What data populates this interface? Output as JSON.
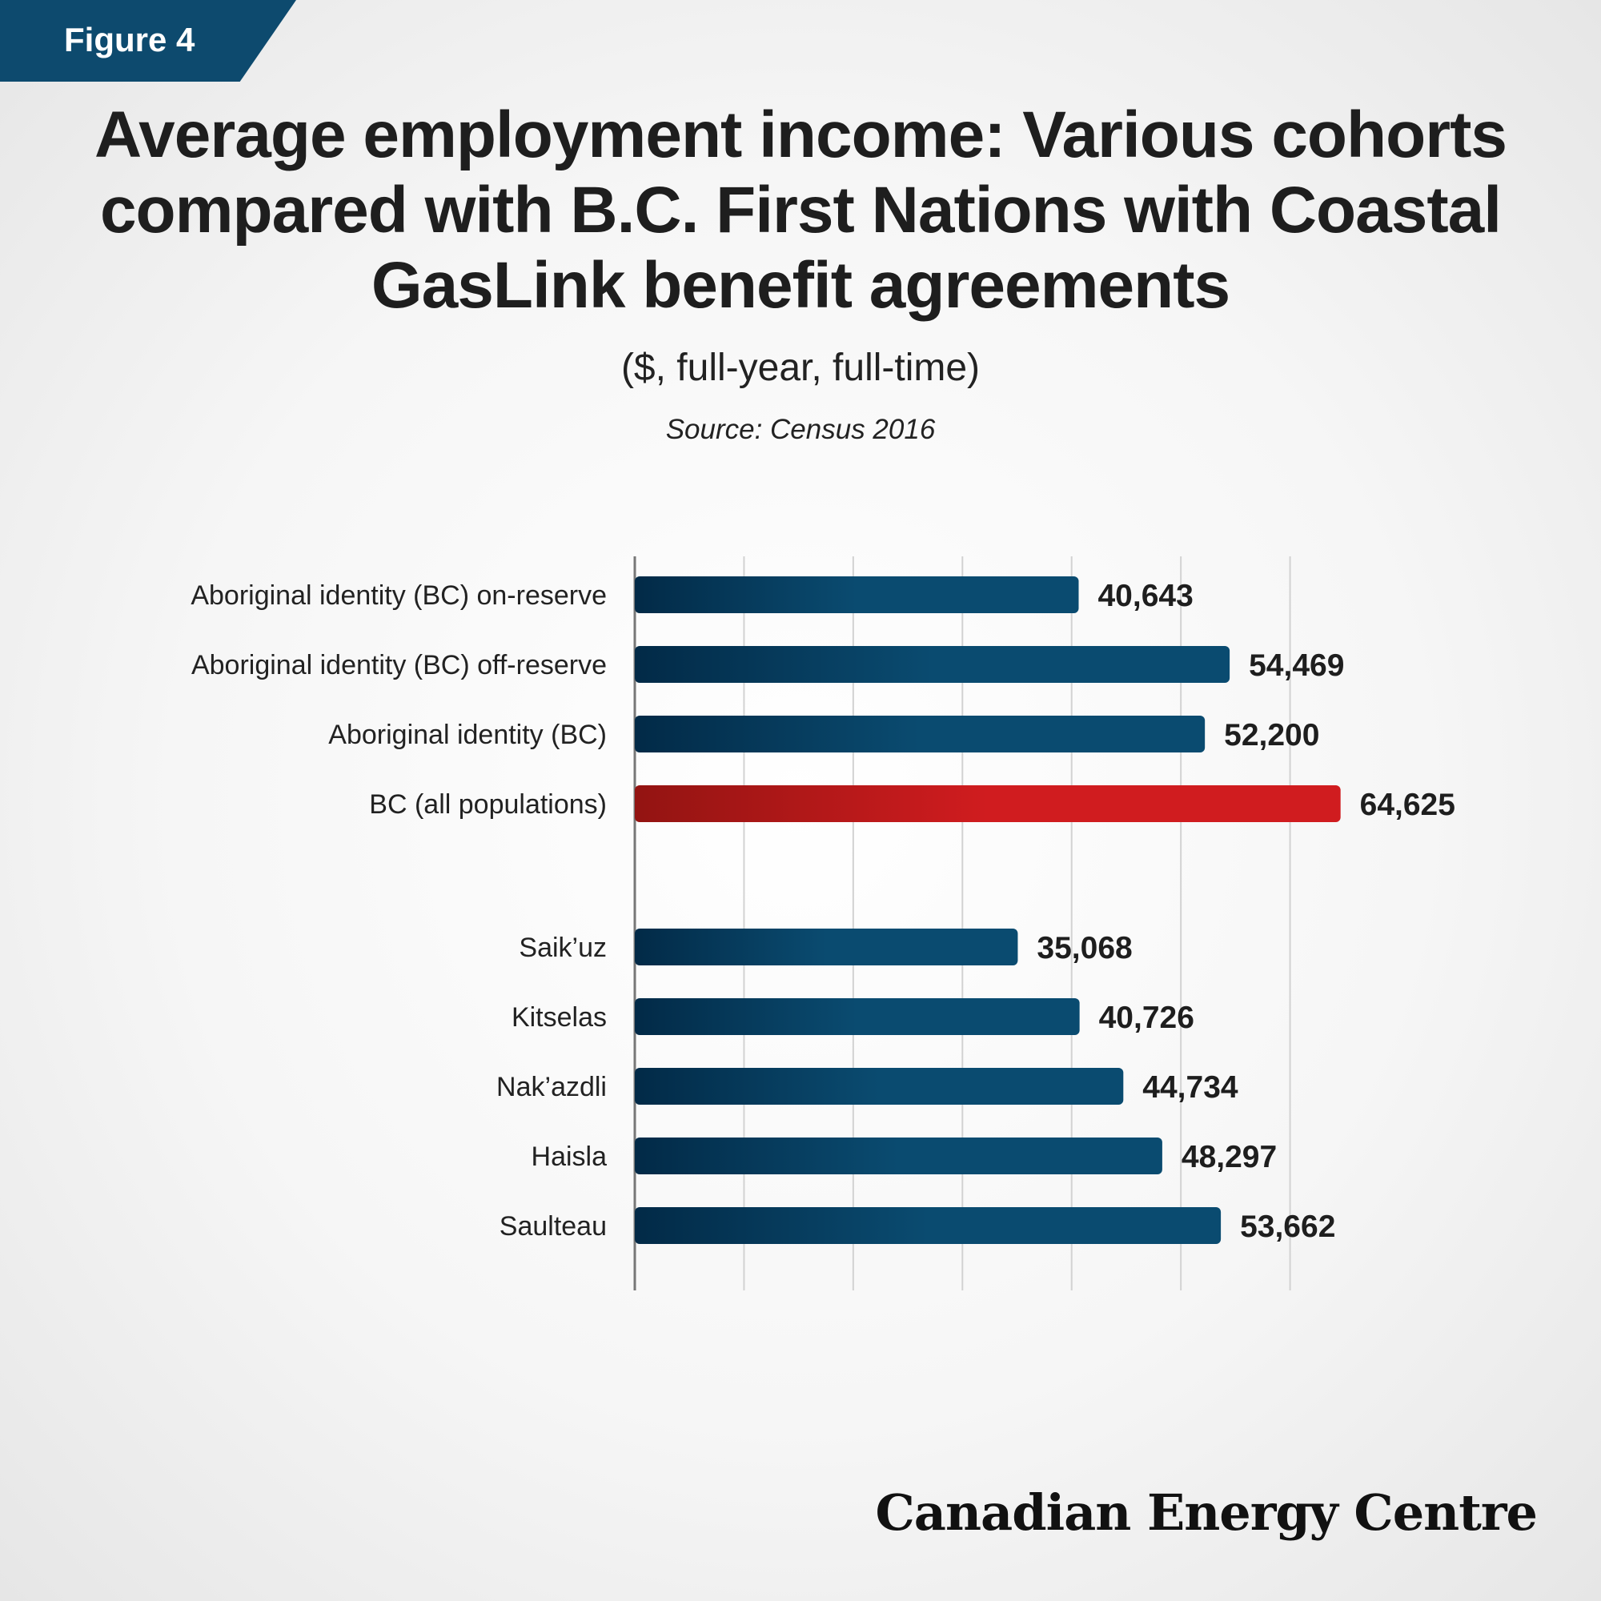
{
  "figure_label": "Figure 4",
  "brand": "Canadian Energy Centre",
  "colors": {
    "bar_dark": "#022a47",
    "bar_light": "#0a4b70",
    "highlight_dark": "#931412",
    "highlight_light": "#d01c1f",
    "grid": "#d2d2d2",
    "axis": "#777777",
    "label": "#222222"
  },
  "chart_data": {
    "type": "bar",
    "orientation": "horizontal",
    "title": "Average employment income: Various cohorts compared with B.C. First Nations with Coastal GasLink benefit agreements",
    "subtitle": "($, full-year, full-time)",
    "source": "Source: Census 2016",
    "xlim": [
      0,
      70000
    ],
    "grid": true,
    "groups": [
      {
        "categories": [
          "Aboriginal identity (BC) on-reserve",
          "Aboriginal identity (BC) off-reserve",
          "Aboriginal identity (BC)",
          "BC (all populations)"
        ],
        "values": [
          40643,
          54469,
          52200,
          64625
        ],
        "labels": [
          "40,643",
          "54,469",
          "52,200",
          "64,625"
        ],
        "highlight": [
          false,
          false,
          false,
          true
        ]
      },
      {
        "categories": [
          "Saik’uz",
          "Kitselas",
          "Nak’azdli",
          "Haisla",
          "Saulteau"
        ],
        "values": [
          35068,
          40726,
          44734,
          48297,
          53662
        ],
        "labels": [
          "35,068",
          "40,726",
          "44,734",
          "48,297",
          "53,662"
        ],
        "highlight": [
          false,
          false,
          false,
          false,
          false
        ]
      }
    ]
  }
}
